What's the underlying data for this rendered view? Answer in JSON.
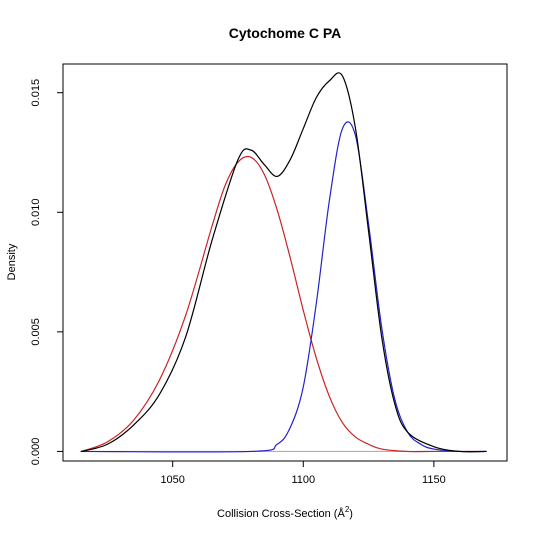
{
  "chart_data": {
    "type": "line",
    "title": "Cytochome C PA",
    "xlabel": "Collision Cross-Section (Å",
    "xlabel_sup": "2",
    "xlabel_close": ")",
    "ylabel": "Density",
    "xlim": [
      1008,
      1178
    ],
    "ylim": [
      -0.0004,
      0.0162
    ],
    "x_ticks": [
      1050,
      1100,
      1150
    ],
    "x_tick_labels": [
      "1050",
      "1100",
      "1150"
    ],
    "y_ticks": [
      0.0,
      0.005,
      0.01,
      0.015
    ],
    "y_tick_labels": [
      "0.000",
      "0.005",
      "0.010",
      "0.015"
    ],
    "baseline": 0.0,
    "x_domain": [
      1015,
      1170
    ],
    "colors": {
      "total": "#000000",
      "red": "#cc2222",
      "blue": "#2222cc",
      "baseline": "#b0b0b0"
    },
    "series": [
      {
        "role": "total",
        "color": "#000000",
        "x": [
          1015,
          1025,
          1035,
          1045,
          1055,
          1065,
          1075,
          1080,
          1085,
          1090,
          1095,
          1100,
          1105,
          1110,
          1115,
          1120,
          1125,
          1130,
          1135,
          1140,
          1150,
          1160,
          1170
        ],
        "y": [
          0.0,
          0.0003,
          0.0011,
          0.0024,
          0.0048,
          0.0088,
          0.0122,
          0.0126,
          0.012,
          0.0115,
          0.0122,
          0.0135,
          0.0148,
          0.0155,
          0.0157,
          0.0135,
          0.0092,
          0.0048,
          0.002,
          0.0008,
          0.0002,
          0.0,
          0.0
        ]
      },
      {
        "role": "red",
        "color": "#cc2222",
        "x": [
          1015,
          1025,
          1035,
          1045,
          1055,
          1065,
          1070,
          1075,
          1080,
          1085,
          1090,
          1095,
          1100,
          1105,
          1110,
          1115,
          1120,
          1125,
          1130,
          1140,
          1150,
          1160,
          1170
        ],
        "y": [
          0.0,
          0.0004,
          0.0013,
          0.003,
          0.0057,
          0.0094,
          0.0111,
          0.0121,
          0.0123,
          0.0116,
          0.0101,
          0.0081,
          0.0059,
          0.0039,
          0.0023,
          0.0012,
          0.0006,
          0.0003,
          0.0001,
          0.0,
          0.0,
          0.0,
          0.0
        ]
      },
      {
        "role": "blue",
        "color": "#2222cc",
        "x": [
          1015,
          1080,
          1090,
          1095,
          1100,
          1105,
          1110,
          1115,
          1120,
          1125,
          1130,
          1135,
          1140,
          1145,
          1150,
          1160,
          1170
        ],
        "y": [
          0.0,
          0.0,
          0.0003,
          0.001,
          0.0027,
          0.0062,
          0.0105,
          0.0135,
          0.0132,
          0.0095,
          0.0052,
          0.0022,
          0.0008,
          0.0003,
          0.0001,
          0.0,
          0.0
        ]
      }
    ]
  }
}
